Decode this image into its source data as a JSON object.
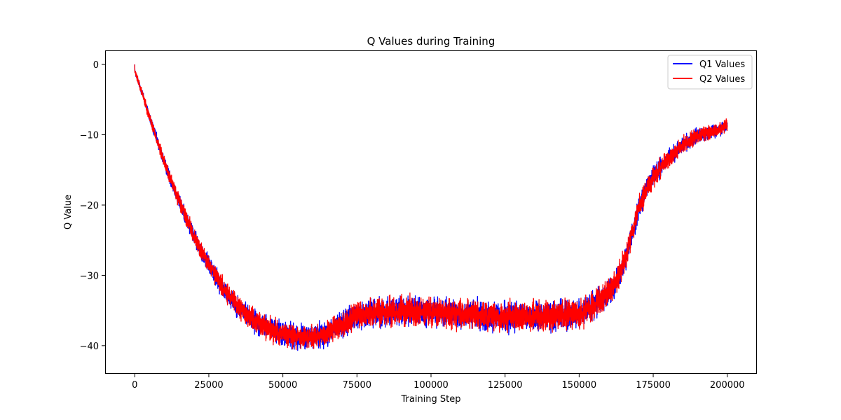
{
  "chart_data": {
    "type": "line",
    "title": "Q Values during Training",
    "xlabel": "Training Step",
    "ylabel": "Q Value",
    "xlim": [
      -10000,
      210000
    ],
    "ylim": [
      -44,
      2
    ],
    "xticks": [
      0,
      25000,
      50000,
      75000,
      100000,
      125000,
      150000,
      175000,
      200000
    ],
    "xtick_labels": [
      "0",
      "25000",
      "50000",
      "75000",
      "100000",
      "125000",
      "150000",
      "175000",
      "200000"
    ],
    "yticks": [
      0,
      -10,
      -20,
      -30,
      -40
    ],
    "ytick_labels": [
      "0",
      "−10",
      "−20",
      "−30",
      "−40"
    ],
    "grid": false,
    "legend_position": "top-right",
    "series": [
      {
        "name": "Q1 Values",
        "color": "#0000ff",
        "x": [
          0,
          2500,
          5000,
          10000,
          15000,
          20000,
          25000,
          30000,
          35000,
          40000,
          45000,
          50000,
          55000,
          60000,
          65000,
          70000,
          75000,
          80000,
          85000,
          90000,
          100000,
          110000,
          120000,
          130000,
          140000,
          150000,
          155000,
          160000,
          163000,
          166000,
          168000,
          170000,
          173000,
          175000,
          180000,
          185000,
          190000,
          195000,
          200000
        ],
        "center": [
          -1,
          -4,
          -7.5,
          -14,
          -19.5,
          -24.5,
          -28.5,
          -32,
          -34.5,
          -36.3,
          -37.5,
          -38.3,
          -38.8,
          -38.7,
          -38.2,
          -37,
          -35.8,
          -35.3,
          -35.2,
          -35,
          -35.2,
          -35.6,
          -35.8,
          -35.9,
          -35.8,
          -35.4,
          -34.3,
          -32.5,
          -30.5,
          -27,
          -24,
          -20.5,
          -17.5,
          -16,
          -13.5,
          -11.5,
          -10,
          -9.5,
          -8.7
        ],
        "band": [
          0.5,
          0.8,
          1,
          1.2,
          1.5,
          1.6,
          1.8,
          2,
          2.1,
          2.2,
          2.3,
          2.4,
          2.4,
          2.5,
          2.5,
          2.6,
          2.7,
          2.8,
          2.8,
          2.8,
          2.8,
          2.8,
          2.8,
          2.8,
          2.8,
          2.8,
          2.7,
          2.6,
          2.5,
          2.4,
          2.3,
          2.2,
          2.1,
          2,
          1.8,
          1.6,
          1.4,
          1.3,
          1.2
        ]
      },
      {
        "name": "Q2 Values",
        "color": "#ff0000",
        "x": [
          0,
          2500,
          5000,
          10000,
          15000,
          20000,
          25000,
          30000,
          35000,
          40000,
          45000,
          50000,
          55000,
          60000,
          65000,
          70000,
          75000,
          80000,
          85000,
          90000,
          100000,
          110000,
          120000,
          130000,
          140000,
          150000,
          155000,
          160000,
          163000,
          166000,
          168000,
          170000,
          173000,
          175000,
          180000,
          185000,
          190000,
          195000,
          200000
        ],
        "center": [
          -1,
          -4,
          -7.5,
          -14,
          -19.5,
          -24.5,
          -28.5,
          -32,
          -34.5,
          -36.3,
          -37.5,
          -38.3,
          -38.8,
          -38.7,
          -38.2,
          -37,
          -35.8,
          -35.3,
          -35.2,
          -35,
          -35.2,
          -35.6,
          -35.8,
          -35.9,
          -35.8,
          -35.4,
          -34.3,
          -32.5,
          -30.5,
          -27,
          -24,
          -20.5,
          -17.5,
          -16,
          -13.5,
          -11.5,
          -10,
          -9.5,
          -8.7
        ],
        "band": [
          0.5,
          0.8,
          1,
          1.2,
          1.5,
          1.6,
          1.8,
          2,
          2.1,
          2.2,
          2.3,
          2.4,
          2.4,
          2.5,
          2.5,
          2.6,
          2.7,
          2.8,
          2.8,
          2.8,
          2.8,
          2.8,
          2.8,
          2.8,
          2.8,
          2.8,
          2.7,
          2.6,
          2.5,
          2.4,
          2.3,
          2.2,
          2.1,
          2,
          1.8,
          1.6,
          1.4,
          1.3,
          1.2
        ]
      }
    ]
  }
}
